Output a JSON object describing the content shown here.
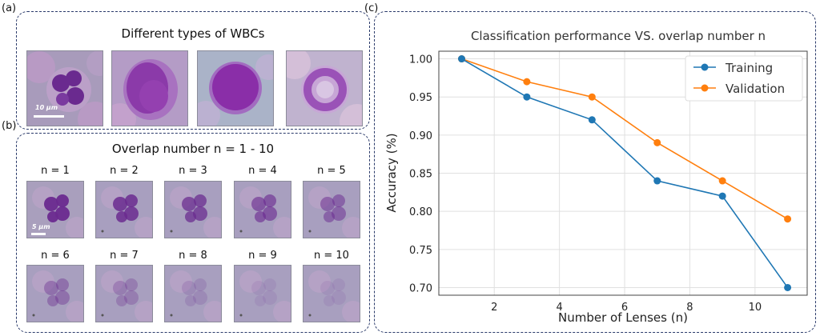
{
  "panel_a": {
    "label": "(a)",
    "title": "Different types of WBCs",
    "scale_text": "10 μm",
    "cells": [
      {
        "kind": "neutrophil",
        "main_color": "#6a2a8f"
      },
      {
        "kind": "lymphocyte-large",
        "main_color": "#8b3aa9"
      },
      {
        "kind": "lymphocyte-round",
        "main_color": "#8a2ea8"
      },
      {
        "kind": "ring-band",
        "main_color": "#9a52b7"
      }
    ]
  },
  "panel_b": {
    "label": "(b)",
    "title": "Overlap number n = 1 - 10",
    "scale_text": "5 μm",
    "tiles": [
      {
        "label": "n = 1",
        "n": 1
      },
      {
        "label": "n = 2",
        "n": 2
      },
      {
        "label": "n = 3",
        "n": 3
      },
      {
        "label": "n = 4",
        "n": 4
      },
      {
        "label": "n = 5",
        "n": 5
      },
      {
        "label": "n = 6",
        "n": 6
      },
      {
        "label": "n = 7",
        "n": 7
      },
      {
        "label": "n = 8",
        "n": 8
      },
      {
        "label": "n = 9",
        "n": 9
      },
      {
        "label": "n = 10",
        "n": 10
      }
    ]
  },
  "panel_c": {
    "label": "(c)"
  },
  "colors": {
    "training": "#1f77b4",
    "validation": "#ff7f0e",
    "border": "#2a3a6a"
  },
  "chart_data": {
    "type": "line",
    "title": "Classification performance VS. overlap number n",
    "xlabel": "Number of Lenses (n)",
    "ylabel": "Accuracy (%)",
    "x": [
      1,
      3,
      5,
      7,
      9,
      11
    ],
    "xlim": [
      0.3,
      11.6
    ],
    "ylim": [
      0.69,
      1.01
    ],
    "xticks": [
      2,
      4,
      6,
      8,
      10
    ],
    "yticks": [
      0.7,
      0.75,
      0.8,
      0.85,
      0.9,
      0.95,
      1.0
    ],
    "ytick_labels": [
      "0.70",
      "0.75",
      "0.80",
      "0.85",
      "0.90",
      "0.95",
      "1.00"
    ],
    "grid": true,
    "legend_position": "top-right",
    "series": [
      {
        "name": "Training",
        "values": [
          1.0,
          0.95,
          0.92,
          0.84,
          0.82,
          0.7
        ]
      },
      {
        "name": "Validation",
        "values": [
          1.0,
          0.97,
          0.95,
          0.89,
          0.84,
          0.79
        ]
      }
    ]
  }
}
